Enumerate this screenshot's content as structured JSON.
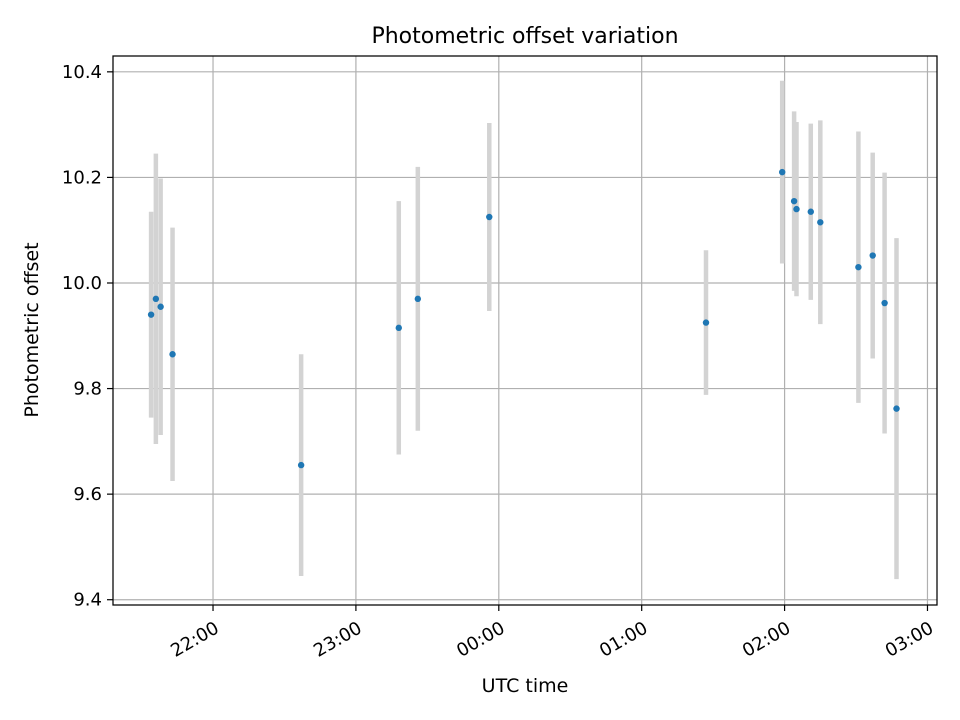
{
  "chart_data": {
    "type": "scatter",
    "title": "Photometric offset variation",
    "xlabel": "UTC time",
    "ylabel": "Photometric offset",
    "xlim": [
      "21:18",
      "03:04"
    ],
    "ylim": [
      9.39,
      10.43
    ],
    "x_ticks": [
      "22:00",
      "23:00",
      "00:00",
      "01:00",
      "02:00",
      "03:00"
    ],
    "y_ticks": [
      "9.4",
      "9.6",
      "9.8",
      "10.0",
      "10.2",
      "10.4"
    ],
    "grid": true,
    "colors": {
      "point": "#1f77b4",
      "errorbar": "#d3d3d3",
      "grid": "#b0b0b0"
    },
    "series": [
      {
        "x": [
          "21:34",
          "21:36",
          "21:38",
          "21:43",
          "22:37",
          "23:18",
          "23:26",
          "23:56",
          "01:27",
          "01:59",
          "02:04",
          "02:05",
          "02:11",
          "02:15",
          "02:31",
          "02:37",
          "02:42",
          "02:47"
        ],
        "y": [
          9.94,
          9.97,
          9.955,
          9.865,
          9.655,
          9.915,
          9.97,
          10.125,
          9.925,
          10.21,
          10.155,
          10.14,
          10.135,
          10.115,
          10.03,
          10.052,
          9.962,
          9.762
        ],
        "yerr": [
          0.195,
          0.275,
          0.243,
          0.24,
          0.21,
          0.24,
          0.25,
          0.178,
          0.137,
          0.173,
          0.17,
          0.165,
          0.167,
          0.193,
          0.257,
          0.195,
          0.247,
          0.323
        ]
      }
    ]
  }
}
